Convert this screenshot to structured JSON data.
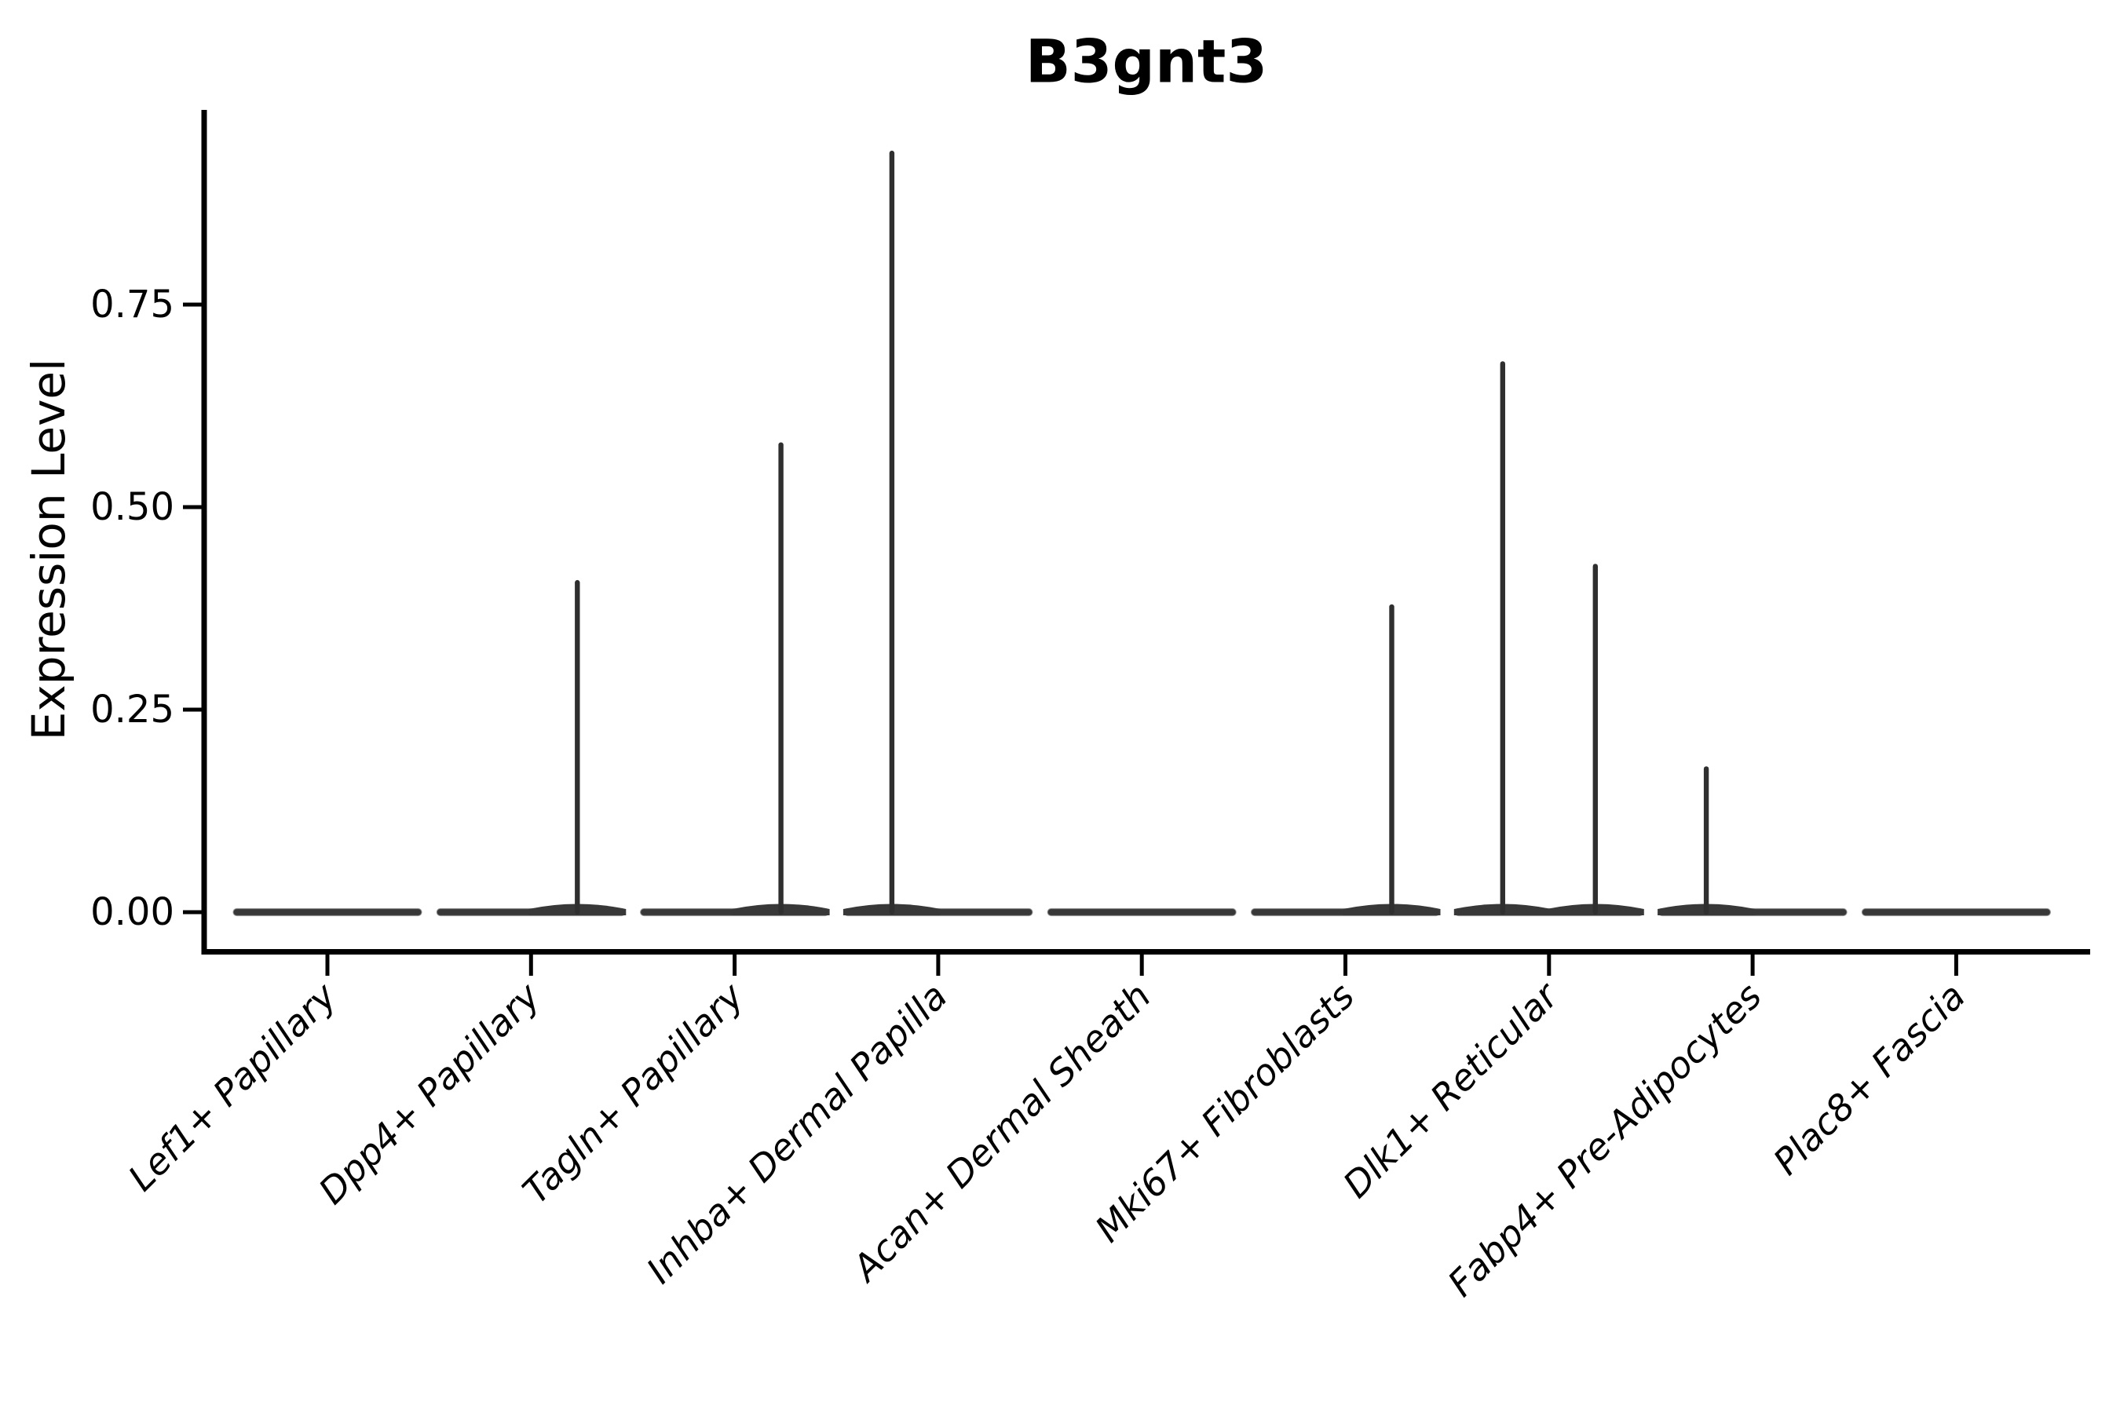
{
  "title": "B3gnt3",
  "y_axis": {
    "label": "Expression Level",
    "tick_labels": [
      "0.00",
      "0.25",
      "0.50",
      "0.75"
    ],
    "tick_values": [
      0,
      0.25,
      0.5,
      0.75
    ]
  },
  "x_axis": {
    "categories": [
      "Lef1+ Papillary",
      "Dpp4+ Papillary",
      "Tagln+ Papillary",
      "Inhba+ Dermal Papilla",
      "Acan+ Dermal Sheath",
      "Mki67+ Fibroblasts",
      "Dlk1+ Reticular",
      "Fabp4+ Pre-Adipocytes",
      "Plac8+ Fascia"
    ]
  },
  "colors": {
    "violin_fill": "#383838",
    "violin_edge": "#8a8a8a",
    "needle": "#2f2f2f",
    "axis": "#000000",
    "text": "#000000",
    "background": "#ffffff"
  },
  "chart_data": {
    "type": "violin",
    "title": "B3gnt3",
    "xlabel": "",
    "ylabel": "Expression Level",
    "categories": [
      "Lef1+ Papillary",
      "Dpp4+ Papillary",
      "Tagln+ Papillary",
      "Inhba+ Dermal Papilla",
      "Acan+ Dermal Sheath",
      "Mki67+ Fibroblasts",
      "Dlk1+ Reticular",
      "Fabp4+ Pre-Adipocytes",
      "Plac8+ Fascia"
    ],
    "yticks": [
      0,
      0.25,
      0.5,
      0.75
    ],
    "ytick_labels": [
      "0.00",
      "0.25",
      "0.50",
      "0.75"
    ],
    "ylim": [
      0,
      0.99
    ],
    "grid": false,
    "legend_position": "none",
    "violins_per_category": 2,
    "description": "Flat violins collapsed at 0 expression with thin vertical density needles rising to the maximum expression value; two adjacent sub-violins per category.",
    "series": [
      {
        "name": "left-subviolin",
        "max_expression": [
          0,
          0,
          0,
          0.94,
          0,
          0,
          0.68,
          0.18,
          0
        ]
      },
      {
        "name": "right-subviolin",
        "max_expression": [
          0,
          0.41,
          0.58,
          0,
          0,
          0.38,
          0.43,
          0,
          0
        ]
      }
    ]
  }
}
